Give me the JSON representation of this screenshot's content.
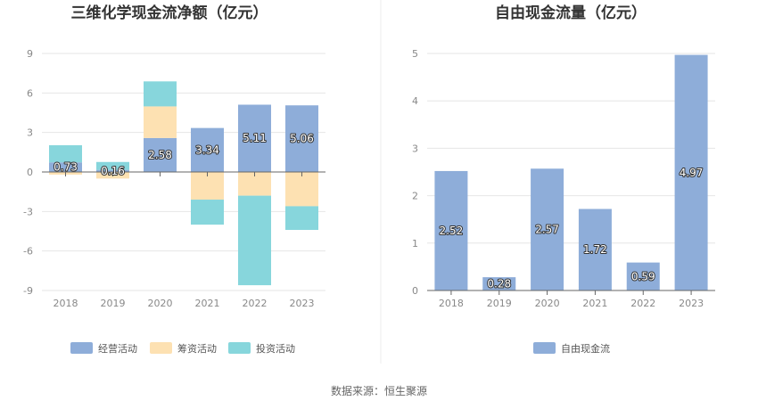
{
  "colors": {
    "operating": "#8eadd9",
    "financing": "#fde1b2",
    "investing": "#87d6dc",
    "fcf": "#8eadd9",
    "grid": "#e6e6e6",
    "axis": "#666666",
    "divider": "#eeeeee"
  },
  "source_text": "数据来源：恒生聚源",
  "chart_data": [
    {
      "type": "bar",
      "stacked": true,
      "title": "三维化学现金流净额（亿元）",
      "categories": [
        "2018",
        "2019",
        "2020",
        "2021",
        "2022",
        "2023"
      ],
      "ylim": [
        -9,
        9
      ],
      "yticks": [
        9,
        6,
        3,
        0,
        -3,
        -6,
        -9
      ],
      "grid": true,
      "legend_position": "bottom",
      "series": [
        {
          "name": "经营活动",
          "values": [
            0.73,
            0.16,
            2.58,
            3.34,
            5.11,
            5.06
          ],
          "labels": [
            "0.73",
            "0.16",
            "2.58",
            "3.34",
            "5.11",
            "5.06"
          ]
        },
        {
          "name": "筹资活动",
          "values": [
            -0.2,
            -0.5,
            2.4,
            -2.1,
            -1.8,
            -2.6
          ]
        },
        {
          "name": "投资活动",
          "values": [
            1.3,
            0.6,
            1.9,
            -1.9,
            -6.8,
            -1.8
          ]
        }
      ]
    },
    {
      "type": "bar",
      "title": "自由现金流量（亿元）",
      "categories": [
        "2018",
        "2019",
        "2020",
        "2021",
        "2022",
        "2023"
      ],
      "ylim": [
        0,
        5
      ],
      "yticks": [
        5,
        4,
        3,
        2,
        1,
        0
      ],
      "grid": true,
      "legend_position": "bottom",
      "series": [
        {
          "name": "自由现金流",
          "values": [
            2.52,
            0.28,
            2.57,
            1.72,
            0.59,
            4.97
          ],
          "labels": [
            "2.52",
            "0.28",
            "2.57",
            "1.72",
            "0.59",
            "4.97"
          ]
        }
      ]
    }
  ]
}
